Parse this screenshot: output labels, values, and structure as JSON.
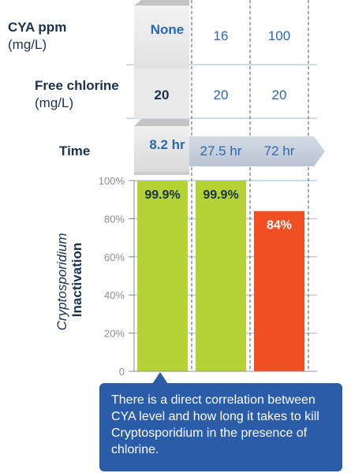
{
  "header": {
    "cya_label": "CYA ppm",
    "cya_unit": "(mg/L)",
    "chlorine_label": "Free chlorine",
    "chlorine_unit": "(mg/L)",
    "time_label": "Time"
  },
  "table": {
    "cya": [
      "None",
      "16",
      "100"
    ],
    "chlorine": [
      "20",
      "20",
      "20"
    ],
    "time": [
      "8.2 hr",
      "27.5 hr",
      "72 hr"
    ]
  },
  "chart_data": {
    "type": "bar",
    "categories": [
      "None",
      "16",
      "100"
    ],
    "values": [
      99.9,
      99.9,
      84
    ],
    "value_labels": [
      "99.9%",
      "99.9%",
      "84%"
    ],
    "ylim": [
      0,
      100
    ],
    "yticks": [
      0,
      20,
      40,
      60,
      80,
      100
    ],
    "ytick_labels": [
      "0",
      "20%",
      "40%",
      "60%",
      "80%",
      "100%"
    ],
    "ylabel_line1": "Cryptosporidium",
    "ylabel_line2": "Inactivation",
    "grid": true,
    "colors": [
      "#b5d334",
      "#b5d334",
      "#f04e23"
    ]
  },
  "callout": {
    "text": "There is a direct correlation between CYA level and how long it takes to kill Cryptosporidium in the presence of chlorine."
  },
  "colors": {
    "navy": "#1a3150",
    "blue": "#2c67b1",
    "grid": "#9bb8d6",
    "gray": "#8e8e8e",
    "green": "#b5d334",
    "red": "#f04e23",
    "callout": "#2a5ca8"
  }
}
